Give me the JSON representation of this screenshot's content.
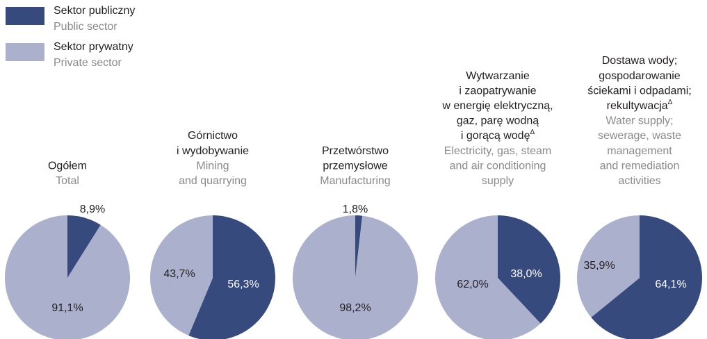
{
  "legend": [
    {
      "name": "Sektor publiczny",
      "name_en": "Public sector",
      "color": "#364a7e"
    },
    {
      "name": "Sektor prywatny",
      "name_en": "Private sector",
      "color": "#abb0cd"
    }
  ],
  "chart_data": [
    {
      "type": "pie",
      "title": [
        "Ogółem"
      ],
      "subtitle": [
        "Total"
      ],
      "values": [
        8.9,
        91.1
      ],
      "value_labels": [
        "8,9%",
        "91,1%"
      ]
    },
    {
      "type": "pie",
      "title": [
        "Górnictwo",
        "i wydobywanie"
      ],
      "subtitle": [
        "Mining",
        "and quarrying"
      ],
      "values": [
        56.3,
        43.7
      ],
      "value_labels": [
        "56,3%",
        "43,7%"
      ]
    },
    {
      "type": "pie",
      "title": [
        "Przetwórstwo",
        "przemysłowe"
      ],
      "subtitle": [
        "Manufacturing"
      ],
      "values": [
        1.8,
        98.2
      ],
      "value_labels": [
        "1,8%",
        "98,2%"
      ]
    },
    {
      "type": "pie",
      "title": [
        "Wytwarzanie",
        "i zaopatrywanie",
        "w energię elektryczną,",
        "gaz, parę wodną",
        "i gorącą wodę"
      ],
      "title_note": "Δ",
      "subtitle": [
        "Electricity, gas, steam",
        "and air conditioning",
        "supply"
      ],
      "values": [
        38.0,
        62.0
      ],
      "value_labels": [
        "38,0%",
        "62,0%"
      ]
    },
    {
      "type": "pie",
      "title": [
        "Dostawa wody;",
        "gospodarowanie",
        "ściekami i odpadami;",
        "rekultywacja"
      ],
      "title_note": "Δ",
      "subtitle": [
        "Water supply;",
        "sewerage, waste",
        "management",
        "and remediation",
        "activities"
      ],
      "values": [
        64.1,
        35.9
      ],
      "value_labels": [
        "64,1%",
        "35,9%"
      ]
    }
  ]
}
